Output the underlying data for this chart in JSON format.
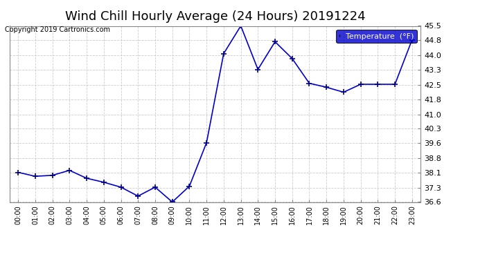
{
  "title": "Wind Chill Hourly Average (24 Hours) 20191224",
  "copyright": "Copyright 2019 Cartronics.com",
  "legend_label": "Temperature  (°F)",
  "x_labels": [
    "00:00",
    "01:00",
    "02:00",
    "03:00",
    "04:00",
    "05:00",
    "06:00",
    "07:00",
    "08:00",
    "09:00",
    "10:00",
    "11:00",
    "12:00",
    "13:00",
    "14:00",
    "15:00",
    "16:00",
    "17:00",
    "18:00",
    "19:00",
    "20:00",
    "21:00",
    "22:00",
    "23:00"
  ],
  "y_values": [
    38.1,
    37.9,
    37.95,
    38.2,
    37.8,
    37.6,
    37.35,
    36.9,
    37.35,
    36.6,
    37.4,
    39.6,
    44.1,
    45.5,
    43.3,
    44.7,
    43.85,
    42.6,
    42.4,
    42.15,
    42.55,
    42.55,
    42.55,
    44.8
  ],
  "ylim_min": 36.6,
  "ylim_max": 45.5,
  "yticks": [
    36.6,
    37.3,
    38.1,
    38.8,
    39.6,
    40.3,
    41.0,
    41.8,
    42.5,
    43.3,
    44.0,
    44.8,
    45.5
  ],
  "line_color": "#0000cc",
  "marker_color": "#000080",
  "bg_color": "#ffffff",
  "plot_bg_color": "#ffffff",
  "grid_color": "#c0c0c0",
  "title_fontsize": 13,
  "legend_bg": "#0000cc",
  "legend_fg": "#ffffff"
}
